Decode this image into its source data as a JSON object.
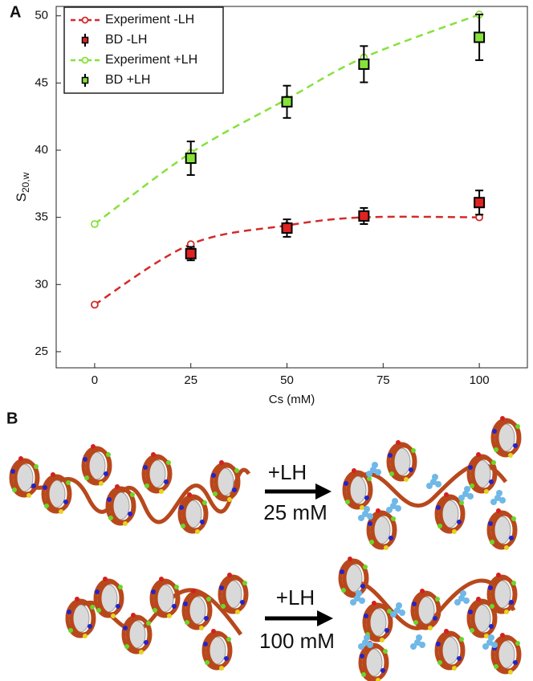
{
  "panel_labels": [
    "A",
    "B"
  ],
  "chart_data": {
    "type": "line",
    "xlabel": "Cs (mM)",
    "ylabel": {
      "text": "S",
      "subscript": "20,w"
    },
    "xlim": [
      -10,
      112.5
    ],
    "ylim": [
      23.8,
      50.7
    ],
    "xticks": [
      0,
      25,
      50,
      75,
      100
    ],
    "yticks": [
      25,
      30,
      35,
      40,
      45,
      50
    ],
    "legend": "upper left",
    "series": [
      {
        "name": "Experiment -LH",
        "color": "#d42a2a",
        "linestyle": "dashed",
        "marker": "circle",
        "x": [
          0,
          25,
          50,
          70,
          100
        ],
        "values": [
          28.5,
          33,
          34.4,
          35,
          35
        ]
      },
      {
        "name": "BD -LH",
        "color": "#e02222",
        "linestyle": "none",
        "marker": "square",
        "x": [
          25,
          50,
          70,
          100
        ],
        "values": [
          32.3,
          34.2,
          35.1,
          36.1
        ],
        "errors": [
          0.5,
          0.65,
          0.6,
          0.9
        ]
      },
      {
        "name": "Experiment +LH",
        "color": "#86e23a",
        "linestyle": "dashed",
        "marker": "circle",
        "x": [
          0,
          25,
          50,
          70,
          100
        ],
        "values": [
          34.5,
          39.8,
          43.8,
          46.9,
          50.1
        ]
      },
      {
        "name": "BD +LH",
        "color": "#86e23a",
        "linestyle": "none",
        "marker": "square",
        "x": [
          25,
          50,
          70,
          100
        ],
        "values": [
          39.4,
          43.6,
          46.4,
          48.4
        ],
        "errors": [
          1.25,
          1.2,
          1.35,
          1.7
        ]
      }
    ]
  },
  "panel_b": {
    "rows": [
      {
        "label": "+LH",
        "concentration": "25 mM"
      },
      {
        "label": "+LH",
        "concentration": "100 mM"
      }
    ]
  }
}
